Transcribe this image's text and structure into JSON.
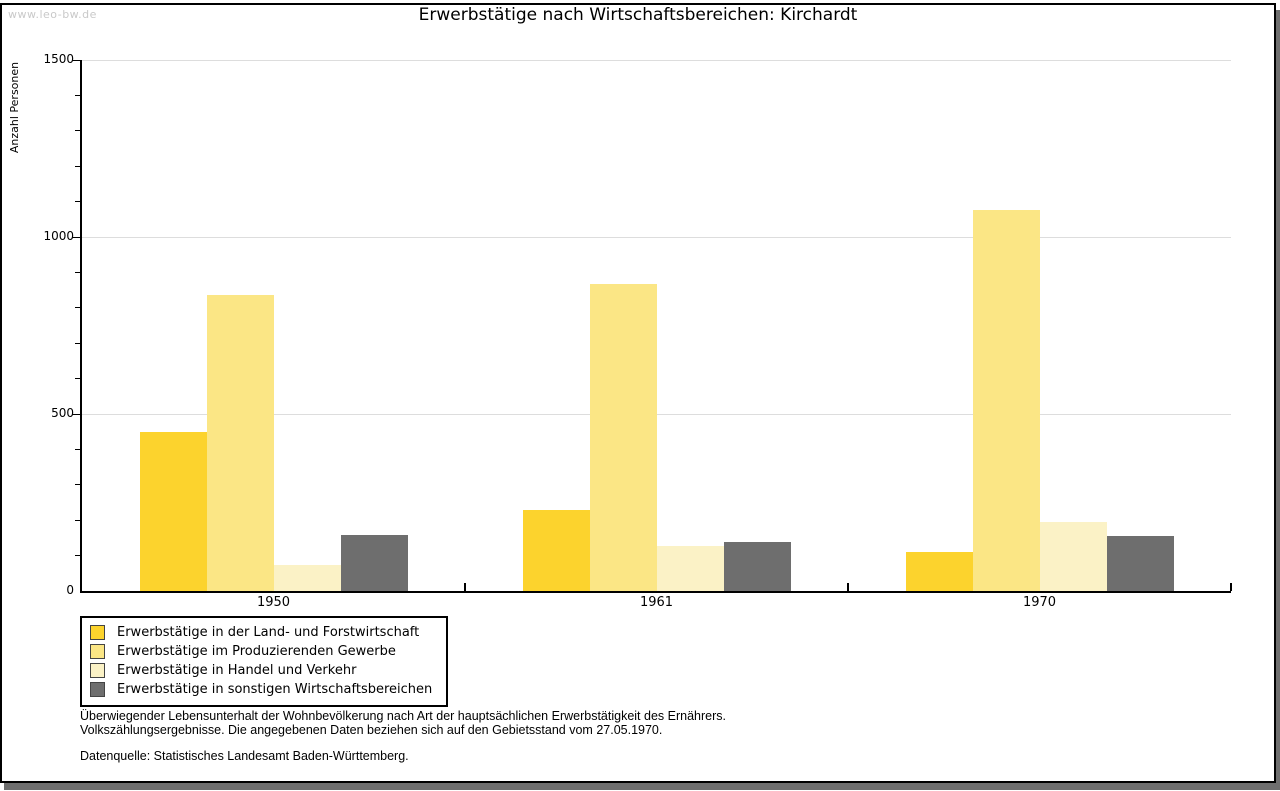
{
  "watermark": "www.leo-bw.de",
  "title": "Erwerbstätige nach Wirtschaftsbereichen: Kirchardt",
  "chart_data": {
    "type": "bar",
    "title": "Erwerbstätige nach Wirtschaftsbereichen: Kirchardt",
    "xlabel": "",
    "ylabel": "Anzahl Personen",
    "ylim": [
      0,
      1500
    ],
    "yticks_major": [
      0,
      500,
      1000,
      1500
    ],
    "ytick_minor_step": 100,
    "grid": "horizontal",
    "gridline_values": [
      500,
      1000,
      1500
    ],
    "legend_position": "bottom-left",
    "categories": [
      "1950",
      "1961",
      "1970"
    ],
    "series": [
      {
        "name": "Erwerbstätige in der Land- und Forstwirtschaft",
        "color": "#fcd32d",
        "values": [
          450,
          230,
          109
        ]
      },
      {
        "name": "Erwerbstätige im Produzierenden Gewerbe",
        "color": "#fbe685",
        "values": [
          837,
          866,
          1076
        ]
      },
      {
        "name": "Erwerbstätige in Handel und Verkehr",
        "color": "#fbf2c6",
        "values": [
          73,
          128,
          194
        ]
      },
      {
        "name": "Erwerbstätige in sonstigen Wirtschaftsbereichen",
        "color": "#6e6e6e",
        "values": [
          159,
          139,
          155
        ]
      }
    ]
  },
  "colors": {
    "grid": "#dddddd",
    "axis": "#000000",
    "watermark": "#c9c9c9",
    "frame_shadow": "#6e6e6e"
  },
  "footnote": {
    "line1": "Überwiegender Lebensunterhalt der Wohnbevölkerung nach Art der hauptsächlichen Erwerbstätigkeit des Ernährers.",
    "line2": "Volkszählungsergebnisse. Die angegebenen Daten beziehen sich auf den Gebietsstand vom 27.05.1970.",
    "source": "Datenquelle: Statistisches Landesamt Baden-Württemberg."
  }
}
